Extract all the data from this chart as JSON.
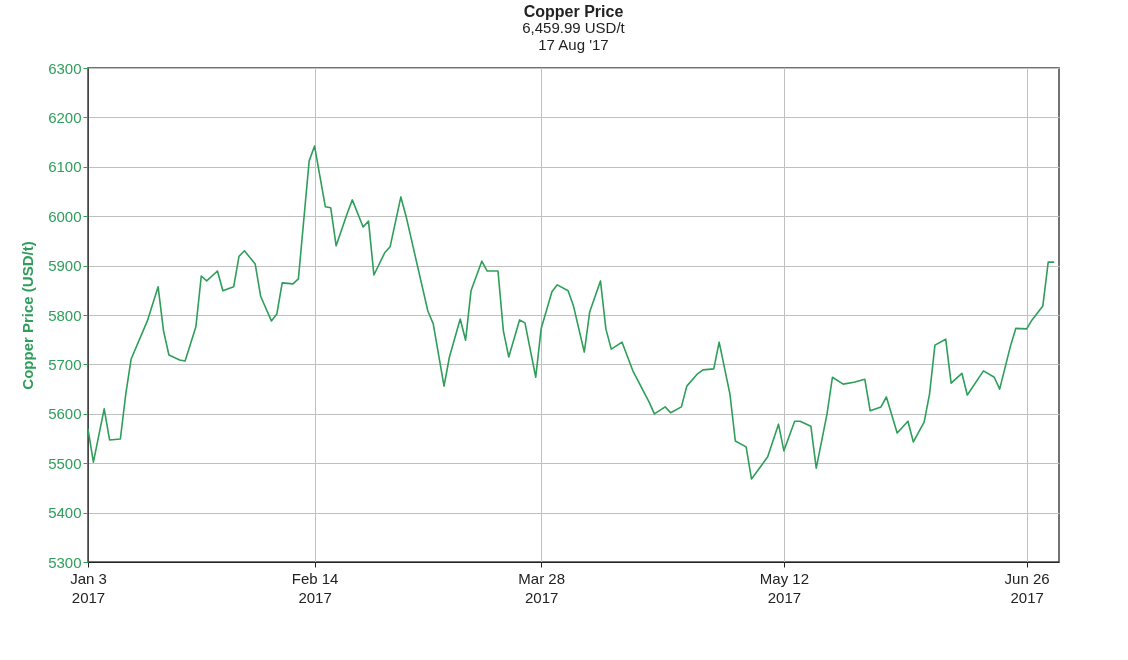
{
  "chart_data": {
    "type": "line",
    "title": "Copper Price",
    "subtitle": "6,459.99 USD/t\n17 Aug '17",
    "ylabel": "Copper Price (USD/t)",
    "x": [
      "2017-01-03",
      "2017-01-04",
      "2017-01-06",
      "2017-01-07",
      "2017-01-09",
      "2017-01-10",
      "2017-01-11",
      "2017-01-14",
      "2017-01-16",
      "2017-01-17",
      "2017-01-18",
      "2017-01-20",
      "2017-01-21",
      "2017-01-23",
      "2017-01-24",
      "2017-01-25",
      "2017-01-27",
      "2017-01-28",
      "2017-01-30",
      "2017-01-31",
      "2017-02-01",
      "2017-02-03",
      "2017-02-04",
      "2017-02-06",
      "2017-02-07",
      "2017-02-08",
      "2017-02-10",
      "2017-02-11",
      "2017-02-13",
      "2017-02-14",
      "2017-02-16",
      "2017-02-17",
      "2017-02-18",
      "2017-02-20",
      "2017-02-21",
      "2017-02-23",
      "2017-02-24",
      "2017-02-25",
      "2017-02-27",
      "2017-02-28",
      "2017-03-02",
      "2017-03-03",
      "2017-03-05",
      "2017-03-07",
      "2017-03-08",
      "2017-03-10",
      "2017-03-11",
      "2017-03-13",
      "2017-03-14",
      "2017-03-15",
      "2017-03-17",
      "2017-03-18",
      "2017-03-20",
      "2017-03-21",
      "2017-03-22",
      "2017-03-24",
      "2017-03-25",
      "2017-03-27",
      "2017-03-28",
      "2017-03-30",
      "2017-03-31",
      "2017-04-02",
      "2017-04-03",
      "2017-04-05",
      "2017-04-06",
      "2017-04-08",
      "2017-04-09",
      "2017-04-10",
      "2017-04-12",
      "2017-04-14",
      "2017-04-17",
      "2017-04-18",
      "2017-04-20",
      "2017-04-21",
      "2017-04-23",
      "2017-04-24",
      "2017-04-26",
      "2017-04-27",
      "2017-04-29",
      "2017-04-30",
      "2017-05-02",
      "2017-05-03",
      "2017-05-05",
      "2017-05-06",
      "2017-05-08",
      "2017-05-09",
      "2017-05-11",
      "2017-05-12",
      "2017-05-14",
      "2017-05-15",
      "2017-05-17",
      "2017-05-18",
      "2017-05-20",
      "2017-05-21",
      "2017-05-23",
      "2017-05-25",
      "2017-05-27",
      "2017-05-28",
      "2017-05-30",
      "2017-05-31",
      "2017-06-02",
      "2017-06-04",
      "2017-06-05",
      "2017-06-07",
      "2017-06-08",
      "2017-06-09",
      "2017-06-11",
      "2017-06-12",
      "2017-06-14",
      "2017-06-15",
      "2017-06-18",
      "2017-06-20",
      "2017-06-21",
      "2017-06-23",
      "2017-06-24",
      "2017-06-26",
      "2017-06-27",
      "2017-06-29",
      "2017-06-30",
      "2017-07-01"
    ],
    "series": [
      {
        "color": "#2e9e5a",
        "values": [
          5569,
          5502,
          5610,
          5547,
          5549,
          5640,
          5711,
          5788,
          5857,
          5768,
          5719,
          5709,
          5707,
          5776,
          5879,
          5869,
          5889,
          5849,
          5857,
          5919,
          5930,
          5903,
          5838,
          5788,
          5802,
          5865,
          5863,
          5873,
          6112,
          6142,
          6019,
          6017,
          5940,
          6004,
          6033,
          5978,
          5990,
          5881,
          5926,
          5938,
          6039,
          5998,
          5903,
          5808,
          5782,
          5656,
          5715,
          5792,
          5749,
          5849,
          5909,
          5889,
          5889,
          5768,
          5715,
          5790,
          5784,
          5674,
          5772,
          5847,
          5861,
          5849,
          5818,
          5725,
          5806,
          5869,
          5772,
          5731,
          5745,
          5687,
          5624,
          5600,
          5614,
          5602,
          5614,
          5656,
          5681,
          5689,
          5691,
          5745,
          5640,
          5545,
          5533,
          5468,
          5498,
          5513,
          5579,
          5525,
          5585,
          5585,
          5575,
          5490,
          5600,
          5674,
          5660,
          5664,
          5670,
          5606,
          5614,
          5634,
          5561,
          5585,
          5543,
          5583,
          5640,
          5739,
          5751,
          5662,
          5682,
          5638,
          5687,
          5674,
          5650,
          5737,
          5773,
          5772,
          5790,
          5818,
          5907,
          5907
        ]
      }
    ],
    "xlim": [
      "2017-01-03",
      "2017-07-02"
    ],
    "xticks": [
      {
        "value": "2017-01-03",
        "label": "Jan 3\n2017"
      },
      {
        "value": "2017-02-14",
        "label": "Feb 14\n2017"
      },
      {
        "value": "2017-03-28",
        "label": "Mar 28\n2017"
      },
      {
        "value": "2017-05-12",
        "label": "May 12\n2017"
      },
      {
        "value": "2017-06-26",
        "label": "Jun 26\n2017"
      }
    ],
    "ylim": [
      5300,
      6300
    ],
    "yticks": [
      5300,
      5400,
      5500,
      5600,
      5700,
      5800,
      5900,
      6000,
      6100,
      6200,
      6300
    ],
    "grid": true
  }
}
